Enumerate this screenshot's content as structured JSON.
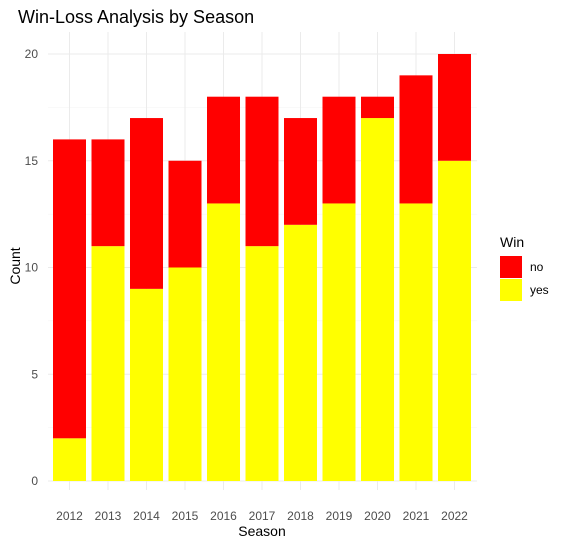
{
  "chart_data": {
    "type": "bar",
    "stacked": true,
    "title": "Win-Loss Analysis by Season",
    "xlabel": "Season",
    "ylabel": "Count",
    "categories": [
      "2012",
      "2013",
      "2014",
      "2015",
      "2016",
      "2017",
      "2018",
      "2019",
      "2020",
      "2021",
      "2022"
    ],
    "series": [
      {
        "name": "yes",
        "color": "#ffff00",
        "values": [
          2,
          11,
          9,
          10,
          13,
          11,
          12,
          13,
          17,
          13,
          15
        ]
      },
      {
        "name": "no",
        "color": "#ff0000",
        "values": [
          14,
          5,
          8,
          5,
          5,
          7,
          5,
          5,
          1,
          6,
          5
        ]
      }
    ],
    "ylim": [
      0,
      20
    ],
    "yticks": [
      "0",
      "5",
      "10",
      "15",
      "20"
    ],
    "grid": true,
    "legend": {
      "title": "Win",
      "placement": "right",
      "entries": [
        {
          "label": "no",
          "color": "#ff0000"
        },
        {
          "label": "yes",
          "color": "#ffff00"
        }
      ]
    }
  }
}
